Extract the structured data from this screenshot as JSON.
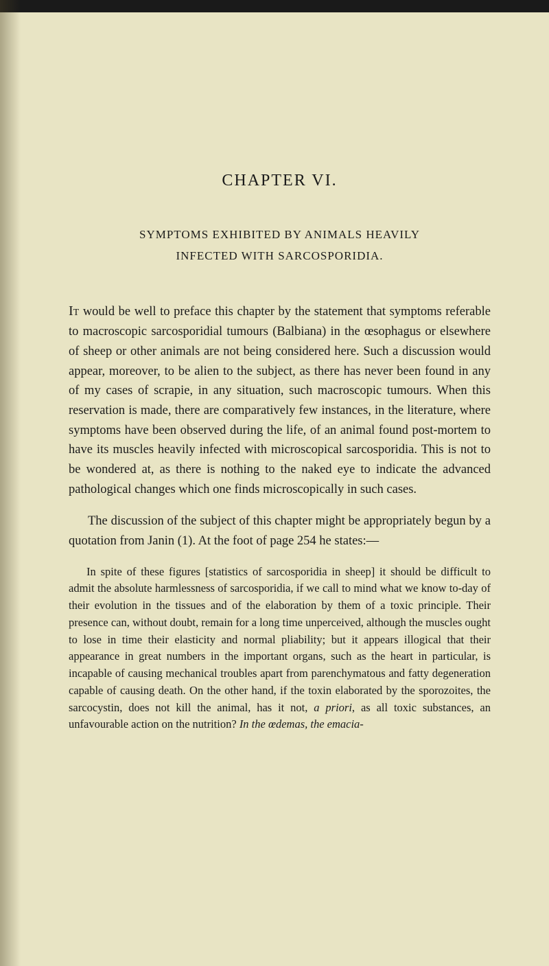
{
  "chapter": {
    "title": "CHAPTER VI."
  },
  "heading": {
    "line1": "SYMPTOMS EXHIBITED BY ANIMALS HEAVILY",
    "line2": "INFECTED WITH SARCOSPORIDIA."
  },
  "paragraphs": {
    "p1_first": "It",
    "p1_rest": " would be well to preface this chapter by the statement that symptoms referable to macroscopic sarcosporidial tumours (Balbiana) in the œsophagus or elsewhere of sheep or other animals are not being considered here. Such a discussion would appear, moreover, to be alien to the subject, as there has never been found in any of my cases of scrapie, in any situation, such macroscopic tumours. When this reservation is made, there are comparatively few instances, in the literature, where symptoms have been observed during the life, of an animal found post-mortem to have its muscles heavily infected with microscopical sarcosporidia. This is not to be wondered at, as there is nothing to the naked eye to indicate the advanced pathological changes which one finds microscopically in such cases.",
    "p2": "The discussion of the subject of this chapter might be appropriately begun by a quotation from Janin (1). At the foot of page 254 he states:—",
    "quote_part1": "In spite of these figures [statistics of sarcosporidia in sheep] it should be difficult to admit the absolute harmlessness of sarcosporidia, if we call to mind what we know to-day of their evolution in the tissues and of the elaboration by them of a toxic principle. Their presence can, without doubt, remain for a long time unperceived, although the muscles ought to lose in time their elasticity and normal pliability; but it appears illogical that their appearance in great numbers in the important organs, such as the heart in particular, is incapable of causing mechanical troubles apart from parenchymatous and fatty degeneration capable of causing death. On the other hand, if the toxin elaborated by the sporozoites, the sarcocystin, does not kill the animal, has it not, ",
    "quote_italic1": "a priori",
    "quote_part2": ", as all toxic substances, an unfavourable action on the nutrition? ",
    "quote_italic2": "In the œdemas, the emacia-"
  }
}
